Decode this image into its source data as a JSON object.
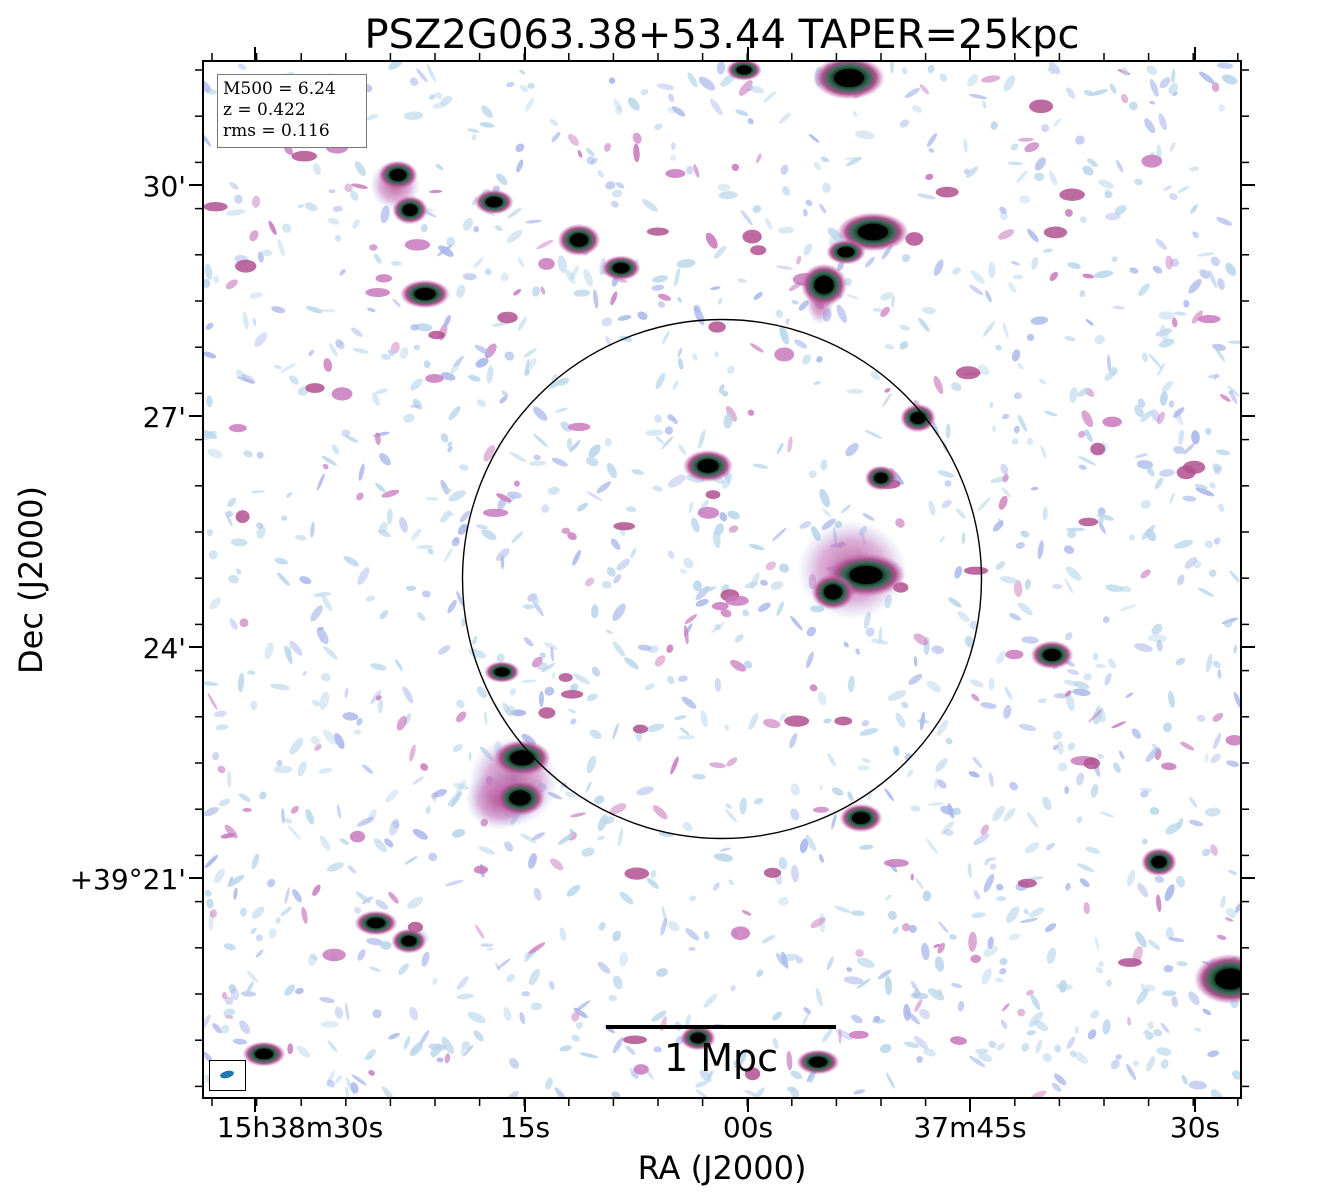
{
  "title": "PSZ2G063.38+53.44 TAPER=25kpc",
  "info": {
    "m500": "M500 = 6.24",
    "z": "z = 0.422",
    "rms": "rms = 0.116"
  },
  "axes": {
    "xlabel": "RA (J2000)",
    "ylabel": "Dec (J2000)",
    "xticks": [
      "15h38m30s",
      "15s",
      "00s",
      "37m45s",
      "30s"
    ],
    "yticks": [
      "30'",
      "27'",
      "24'",
      "+39°21'"
    ]
  },
  "scalebar": {
    "label": "1 Mpc"
  },
  "colors": {
    "noise_light": "#b9d6ea",
    "noise_blue": "#a9b6ea",
    "emission_pink": "#c879bd",
    "emission_magenta": "#b0508f",
    "emission_green": "#2f6a50",
    "source_core": "#000000",
    "beam": "#1f77b4"
  },
  "icons": {
    "beam": "beam-ellipse-icon",
    "r500": "r500-circle"
  }
}
